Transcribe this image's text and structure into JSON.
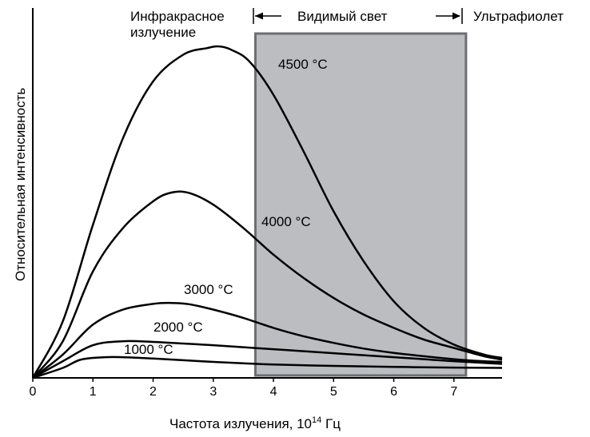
{
  "chart_data": {
    "type": "line",
    "xlabel": "Частота излучения, 10",
    "xlabel_exp": "14",
    "xlabel_unit": " Гц",
    "ylabel": "Относительная интенсивность",
    "xlim": [
      0,
      7.8
    ],
    "ylim": [
      0,
      1.0
    ],
    "x_ticks": [
      "0",
      "1",
      "2",
      "3",
      "4",
      "5",
      "6",
      "7"
    ],
    "regions": [
      {
        "name": "infrared",
        "label_line1": "Инфракрасное",
        "label_line2": "излучение",
        "x_range": [
          0,
          3.7
        ]
      },
      {
        "name": "visible",
        "label": "Видимый свет",
        "x_range": [
          3.7,
          7.2
        ],
        "shaded": true,
        "color": "#bcbdc0",
        "border_color": "#6d6e71"
      },
      {
        "name": "ultraviolet",
        "label": "Ультрафиолет",
        "x_range": [
          7.2,
          7.8
        ]
      }
    ],
    "series": [
      {
        "name": "4500 °C",
        "x": [
          0,
          0.5,
          1.0,
          1.5,
          2.0,
          2.5,
          2.9,
          3.1,
          3.3,
          3.6,
          4.0,
          4.5,
          5.0,
          5.5,
          6.0,
          6.5,
          7.0,
          7.5,
          7.8
        ],
        "y": [
          0,
          0.17,
          0.46,
          0.72,
          0.89,
          0.97,
          0.99,
          0.995,
          0.985,
          0.95,
          0.85,
          0.68,
          0.5,
          0.35,
          0.23,
          0.15,
          0.1,
          0.07,
          0.06
        ]
      },
      {
        "name": "4000 °C",
        "x": [
          0,
          0.5,
          1.0,
          1.5,
          2.0,
          2.3,
          2.6,
          3.0,
          3.5,
          4.0,
          4.5,
          5.0,
          5.5,
          6.0,
          6.5,
          7.0,
          7.5,
          7.8
        ],
        "y": [
          0,
          0.11,
          0.32,
          0.45,
          0.53,
          0.556,
          0.555,
          0.52,
          0.45,
          0.37,
          0.3,
          0.24,
          0.19,
          0.15,
          0.115,
          0.09,
          0.065,
          0.055
        ]
      },
      {
        "name": "3000 °C",
        "x": [
          0,
          0.5,
          1.0,
          1.5,
          2.0,
          2.3,
          2.6,
          3.0,
          3.5,
          4.0,
          4.5,
          5.0,
          5.5,
          6.0,
          6.5,
          7.0,
          7.5,
          7.8
        ],
        "y": [
          0,
          0.07,
          0.16,
          0.205,
          0.222,
          0.225,
          0.221,
          0.205,
          0.18,
          0.15,
          0.125,
          0.105,
          0.088,
          0.075,
          0.065,
          0.056,
          0.05,
          0.048
        ]
      },
      {
        "name": "2000 °C",
        "x": [
          0,
          0.5,
          1.0,
          1.5,
          2.0,
          2.5,
          3.0,
          3.5,
          4.0,
          4.5,
          5.0,
          5.5,
          6.0,
          6.5,
          7.0,
          7.5,
          7.8
        ],
        "y": [
          0,
          0.05,
          0.098,
          0.11,
          0.108,
          0.103,
          0.098,
          0.092,
          0.086,
          0.08,
          0.074,
          0.068,
          0.062,
          0.056,
          0.05,
          0.045,
          0.042
        ]
      },
      {
        "name": "1000 °C",
        "x": [
          0,
          0.5,
          0.8,
          1.2,
          1.5,
          2.0,
          2.5,
          3.0,
          3.5,
          4.0,
          5.0,
          6.0,
          7.0,
          7.8
        ],
        "y": [
          0,
          0.03,
          0.055,
          0.062,
          0.062,
          0.058,
          0.053,
          0.048,
          0.044,
          0.04,
          0.036,
          0.033,
          0.031,
          0.03
        ]
      }
    ]
  }
}
